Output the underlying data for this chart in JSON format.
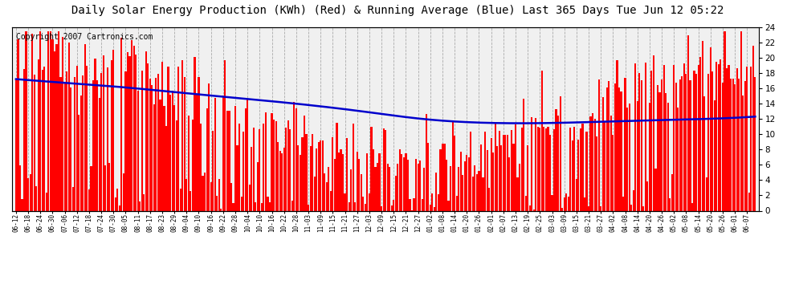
{
  "title": "Daily Solar Energy Production (KWh) (Red) & Running Average (Blue) Last 365 Days Tue Jun 12 05:22",
  "copyright": "Copyright 2007 Cartronics.com",
  "ylim": [
    0,
    24.0
  ],
  "yticks": [
    0.0,
    2.0,
    4.0,
    6.0,
    8.0,
    10.0,
    12.0,
    14.0,
    16.0,
    18.0,
    20.0,
    22.0,
    24.0
  ],
  "bar_color": "#ff0000",
  "line_color": "#0000cc",
  "bg_color": "#ffffff",
  "plot_bg_color": "#f0f0f0",
  "title_fontsize": 10,
  "copyright_fontsize": 7,
  "x_labels": [
    "06-12",
    "06-18",
    "06-24",
    "06-30",
    "07-06",
    "07-12",
    "07-18",
    "07-24",
    "07-30",
    "08-05",
    "08-11",
    "08-17",
    "08-23",
    "08-29",
    "09-04",
    "09-10",
    "09-16",
    "09-22",
    "09-28",
    "10-04",
    "10-10",
    "10-16",
    "10-22",
    "10-28",
    "11-03",
    "11-09",
    "11-15",
    "11-21",
    "11-27",
    "12-03",
    "12-09",
    "12-15",
    "12-21",
    "12-27",
    "01-02",
    "01-08",
    "01-14",
    "01-20",
    "01-26",
    "02-01",
    "02-07",
    "02-13",
    "02-19",
    "02-25",
    "03-03",
    "03-09",
    "03-15",
    "03-21",
    "03-27",
    "04-02",
    "04-08",
    "04-14",
    "04-20",
    "04-26",
    "05-02",
    "05-08",
    "05-14",
    "05-20",
    "05-26",
    "06-01",
    "06-07"
  ],
  "avg_curve_x": [
    0,
    20,
    50,
    90,
    130,
    170,
    200,
    230,
    270,
    310,
    340,
    364
  ],
  "avg_curve_y": [
    17.2,
    16.8,
    16.2,
    15.2,
    14.2,
    13.0,
    12.0,
    11.5,
    11.5,
    11.8,
    12.0,
    12.3
  ]
}
